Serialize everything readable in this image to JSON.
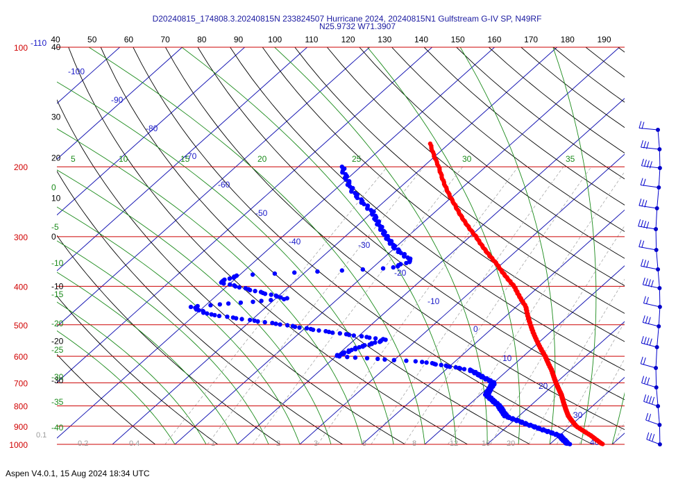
{
  "title": {
    "line1": "D20240815_174808.3.20240815N 233824507 Hurricane 2024, 20240815N1 Gulfstream G-IV SP, N49RF",
    "line2": "N25.9732 W71.3907"
  },
  "footer": "Aspen V4.0.1, 15 Aug 2024  18:34 UTC",
  "chart_data": {
    "type": "skew-t log-p",
    "pressure_levels": [
      100,
      200,
      300,
      400,
      500,
      600,
      700,
      800,
      900,
      1000
    ],
    "pressure_labels": [
      "100",
      "200",
      "300",
      "400",
      "500",
      "600",
      "700",
      "800",
      "900",
      "1000"
    ],
    "top_corner_label": "-110",
    "top_scale": [
      "40",
      "50",
      "60",
      "70",
      "80",
      "90",
      "100",
      "110",
      "120",
      "130",
      "140",
      "150",
      "160",
      "170",
      "180",
      "190"
    ],
    "left_scale": [
      {
        "p": 100,
        "label": "40"
      },
      {
        "p": 150,
        "label": "30"
      },
      {
        "p": 190,
        "label": "20"
      },
      {
        "p": 240,
        "label": "10"
      },
      {
        "p": 300,
        "label": "0"
      },
      {
        "p": 400,
        "label": "-10"
      },
      {
        "p": 550,
        "label": "-20"
      },
      {
        "p": 690,
        "label": "-30"
      }
    ],
    "isotherm_labels": [
      {
        "t": -100,
        "label": "-100"
      },
      {
        "t": -90,
        "label": "-90"
      },
      {
        "t": -80,
        "label": "-80"
      },
      {
        "t": -70,
        "label": "-70"
      },
      {
        "t": -60,
        "label": "-60"
      },
      {
        "t": -50,
        "label": "-50"
      },
      {
        "t": -40,
        "label": "-40"
      },
      {
        "t": -30,
        "label": "-30"
      },
      {
        "t": -20,
        "label": "-20"
      },
      {
        "t": -10,
        "label": "-10"
      },
      {
        "t": 0,
        "label": "0"
      },
      {
        "t": 10,
        "label": "10"
      },
      {
        "t": 20,
        "label": "20"
      },
      {
        "t": 30,
        "label": "30"
      },
      {
        "t": 40,
        "label": "40"
      }
    ],
    "moist_adiabat_labels": [
      "5",
      "10",
      "15",
      "20",
      "25",
      "30",
      "35"
    ],
    "left_green_labels": [
      "0",
      "-5",
      "-10",
      "-15",
      "-20",
      "-25",
      "-30",
      "-35",
      "-40"
    ],
    "mixing_ratio_labels": [
      "0.1",
      "0.2",
      "0.4",
      "1",
      "2",
      "3",
      "5",
      "8",
      "12",
      "16",
      "20"
    ],
    "temperature_profile": [
      {
        "p": 175,
        "t": -53
      },
      {
        "p": 200,
        "t": -47.5
      },
      {
        "p": 250,
        "t": -38
      },
      {
        "p": 300,
        "t": -29
      },
      {
        "p": 350,
        "t": -21
      },
      {
        "p": 400,
        "t": -14
      },
      {
        "p": 450,
        "t": -8.5
      },
      {
        "p": 500,
        "t": -4.5
      },
      {
        "p": 550,
        "t": -0.5
      },
      {
        "p": 600,
        "t": 3.5
      },
      {
        "p": 650,
        "t": 7
      },
      {
        "p": 700,
        "t": 10
      },
      {
        "p": 750,
        "t": 13
      },
      {
        "p": 800,
        "t": 15.5
      },
      {
        "p": 850,
        "t": 18
      },
      {
        "p": 900,
        "t": 21
      },
      {
        "p": 950,
        "t": 25
      },
      {
        "p": 1000,
        "t": 28.5
      }
    ],
    "dewpoint_profile": [
      {
        "p": 200,
        "t": -63
      },
      {
        "p": 230,
        "t": -57
      },
      {
        "p": 260,
        "t": -50
      },
      {
        "p": 290,
        "t": -45
      },
      {
        "p": 320,
        "t": -40
      },
      {
        "p": 345,
        "t": -35
      },
      {
        "p": 360,
        "t": -37
      },
      {
        "p": 375,
        "t": -60
      },
      {
        "p": 390,
        "t": -62
      },
      {
        "p": 410,
        "t": -55
      },
      {
        "p": 430,
        "t": -48
      },
      {
        "p": 450,
        "t": -62
      },
      {
        "p": 470,
        "t": -58
      },
      {
        "p": 500,
        "t": -44
      },
      {
        "p": 520,
        "t": -36
      },
      {
        "p": 545,
        "t": -25
      },
      {
        "p": 570,
        "t": -28
      },
      {
        "p": 600,
        "t": -30
      },
      {
        "p": 620,
        "t": -15
      },
      {
        "p": 650,
        "t": -6
      },
      {
        "p": 700,
        "t": 0
      },
      {
        "p": 750,
        "t": 1
      },
      {
        "p": 800,
        "t": 5
      },
      {
        "p": 850,
        "t": 8
      },
      {
        "p": 900,
        "t": 14
      },
      {
        "p": 950,
        "t": 20
      },
      {
        "p": 1000,
        "t": 23
      }
    ]
  }
}
